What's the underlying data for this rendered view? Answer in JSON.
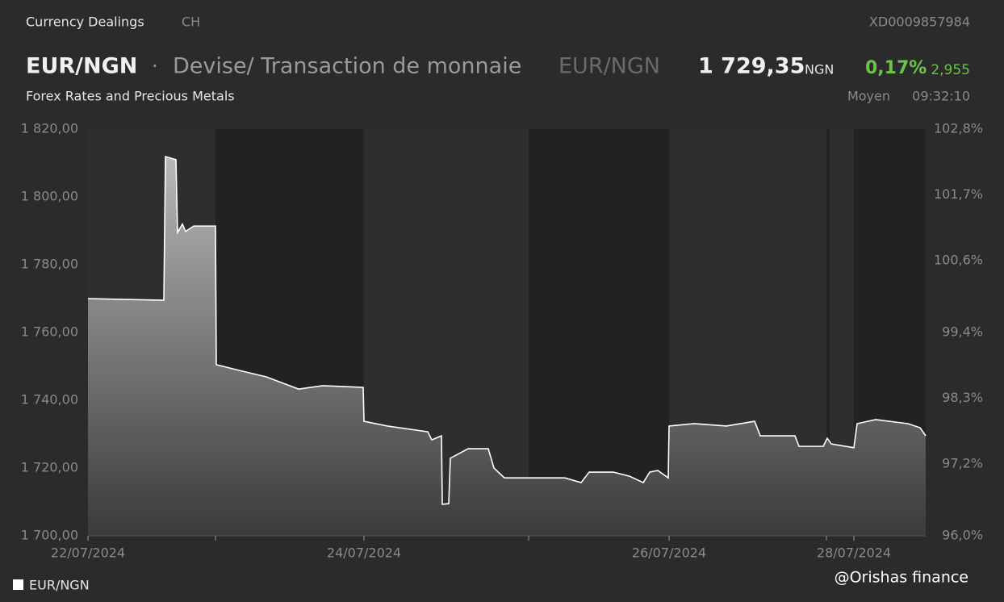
{
  "header": {
    "category": "Currency Dealings",
    "country": "CH",
    "isin": "XD0009857984",
    "symbol": "EUR/NGN",
    "separator": "·",
    "description": "Devise/ Transaction de monnaie",
    "symbol2": "EUR/NGN",
    "price": "1 729,35",
    "currency": "NGN",
    "change_pct": "0,17%",
    "change": "2,955",
    "market": "Forex Rates and Precious Metals",
    "price_type": "Moyen",
    "time": "09:32:10"
  },
  "chart_data": {
    "type": "area",
    "series": [
      {
        "name": "EUR/NGN",
        "color": "#ffffff",
        "x": [
          0,
          94,
          96,
          109,
          111,
          117,
          121,
          131,
          158,
          159,
          191,
          221,
          261,
          291,
          341,
          342,
          371,
          421,
          426,
          438,
          439,
          447,
          449,
          471,
          496,
          503,
          516,
          551,
          591,
          611,
          621,
          651,
          671,
          688,
          696,
          706,
          719,
          720,
          751,
          791,
          826,
          833,
          876,
          881,
          911,
          916,
          921,
          949,
          953,
          976,
          1016,
          1031,
          1038
        ],
        "values": [
          1770.0,
          1769.5,
          1811.9,
          1811.0,
          1789.5,
          1792.0,
          1789.8,
          1791.4,
          1791.4,
          1750.5,
          1748.6,
          1746.9,
          1743.3,
          1744.3,
          1743.8,
          1733.8,
          1732.4,
          1730.7,
          1728.3,
          1729.5,
          1709.3,
          1709.5,
          1722.9,
          1725.7,
          1725.7,
          1720.0,
          1717.1,
          1717.1,
          1717.1,
          1715.7,
          1718.8,
          1718.8,
          1717.6,
          1715.7,
          1718.8,
          1719.3,
          1717.1,
          1732.4,
          1733.1,
          1732.4,
          1733.8,
          1729.5,
          1729.5,
          1726.4,
          1726.4,
          1728.8,
          1727.1,
          1726.0,
          1733.1,
          1734.3,
          1733.1,
          1731.9,
          1729.5
        ]
      }
    ],
    "xlim": [
      0,
      1038
    ],
    "xticks": [
      {
        "value": 0,
        "label": "22/07/2024"
      },
      {
        "value": 158,
        "label": null
      },
      {
        "value": 342,
        "label": "24/07/2024"
      },
      {
        "value": 546,
        "label": null
      },
      {
        "value": 720,
        "label": "26/07/2024"
      },
      {
        "value": 915,
        "label": null
      },
      {
        "value": 949,
        "label": "28/07/2024"
      }
    ],
    "shaded_ranges": [
      [
        158,
        342
      ],
      [
        546,
        720
      ],
      [
        915,
        919
      ],
      [
        949,
        1038
      ]
    ],
    "ylim": [
      1700,
      1820
    ],
    "yticks": [
      {
        "value": 1700,
        "label": "1 700,00"
      },
      {
        "value": 1720,
        "label": "1 720,00"
      },
      {
        "value": 1740,
        "label": "1 740,00"
      },
      {
        "value": 1760,
        "label": "1 760,00"
      },
      {
        "value": 1780,
        "label": "1 780,00"
      },
      {
        "value": 1800,
        "label": "1 800,00"
      },
      {
        "value": 1820,
        "label": "1 820,00"
      }
    ],
    "y2lim": [
      96.0,
      102.8
    ],
    "y2ticks": [
      {
        "value": 96.0,
        "label": "96,0%"
      },
      {
        "value": 97.2,
        "label": "97,2%"
      },
      {
        "value": 98.3,
        "label": "98,3%"
      },
      {
        "value": 99.4,
        "label": "99,4%"
      },
      {
        "value": 100.6,
        "label": "100,6%"
      },
      {
        "value": 101.7,
        "label": "101,7%"
      },
      {
        "value": 102.8,
        "label": "102,8%"
      }
    ],
    "watermark": "@Orishas finance"
  }
}
